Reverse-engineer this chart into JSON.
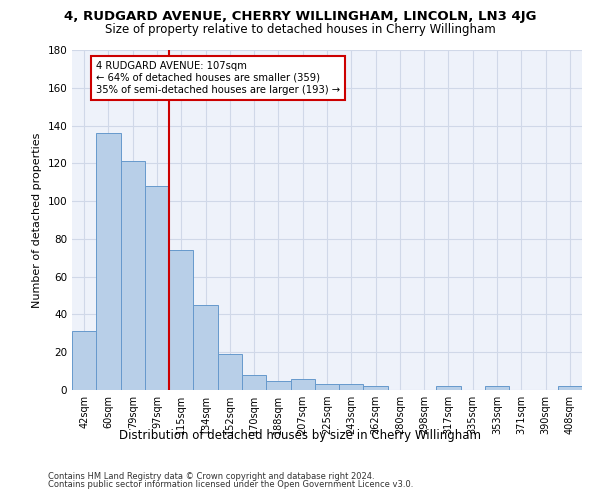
{
  "title1": "4, RUDGARD AVENUE, CHERRY WILLINGHAM, LINCOLN, LN3 4JG",
  "title2": "Size of property relative to detached houses in Cherry Willingham",
  "xlabel": "Distribution of detached houses by size in Cherry Willingham",
  "ylabel": "Number of detached properties",
  "footnote1": "Contains HM Land Registry data © Crown copyright and database right 2024.",
  "footnote2": "Contains public sector information licensed under the Open Government Licence v3.0.",
  "bar_labels": [
    "42sqm",
    "60sqm",
    "79sqm",
    "97sqm",
    "115sqm",
    "134sqm",
    "152sqm",
    "170sqm",
    "188sqm",
    "207sqm",
    "225sqm",
    "243sqm",
    "262sqm",
    "280sqm",
    "298sqm",
    "317sqm",
    "335sqm",
    "353sqm",
    "371sqm",
    "390sqm",
    "408sqm"
  ],
  "bar_values": [
    31,
    136,
    121,
    108,
    74,
    45,
    19,
    8,
    5,
    6,
    3,
    3,
    2,
    0,
    0,
    2,
    0,
    2,
    0,
    0,
    2
  ],
  "bar_color": "#b8cfe8",
  "bar_edge_color": "#6699cc",
  "vline_bin_index": 3.5,
  "annotation_title": "4 RUDGARD AVENUE: 107sqm",
  "annotation_line2": "← 64% of detached houses are smaller (359)",
  "annotation_line3": "35% of semi-detached houses are larger (193) →",
  "annotation_box_color": "#cc0000",
  "ylim": [
    0,
    180
  ],
  "yticks": [
    0,
    20,
    40,
    60,
    80,
    100,
    120,
    140,
    160,
    180
  ],
  "grid_color": "#d0d8e8",
  "bg_color": "#eef2fa",
  "title1_fontsize": 9.5,
  "title2_fontsize": 8.5,
  "ylabel_fontsize": 8,
  "xlabel_fontsize": 8.5,
  "bar_width": 1.0
}
